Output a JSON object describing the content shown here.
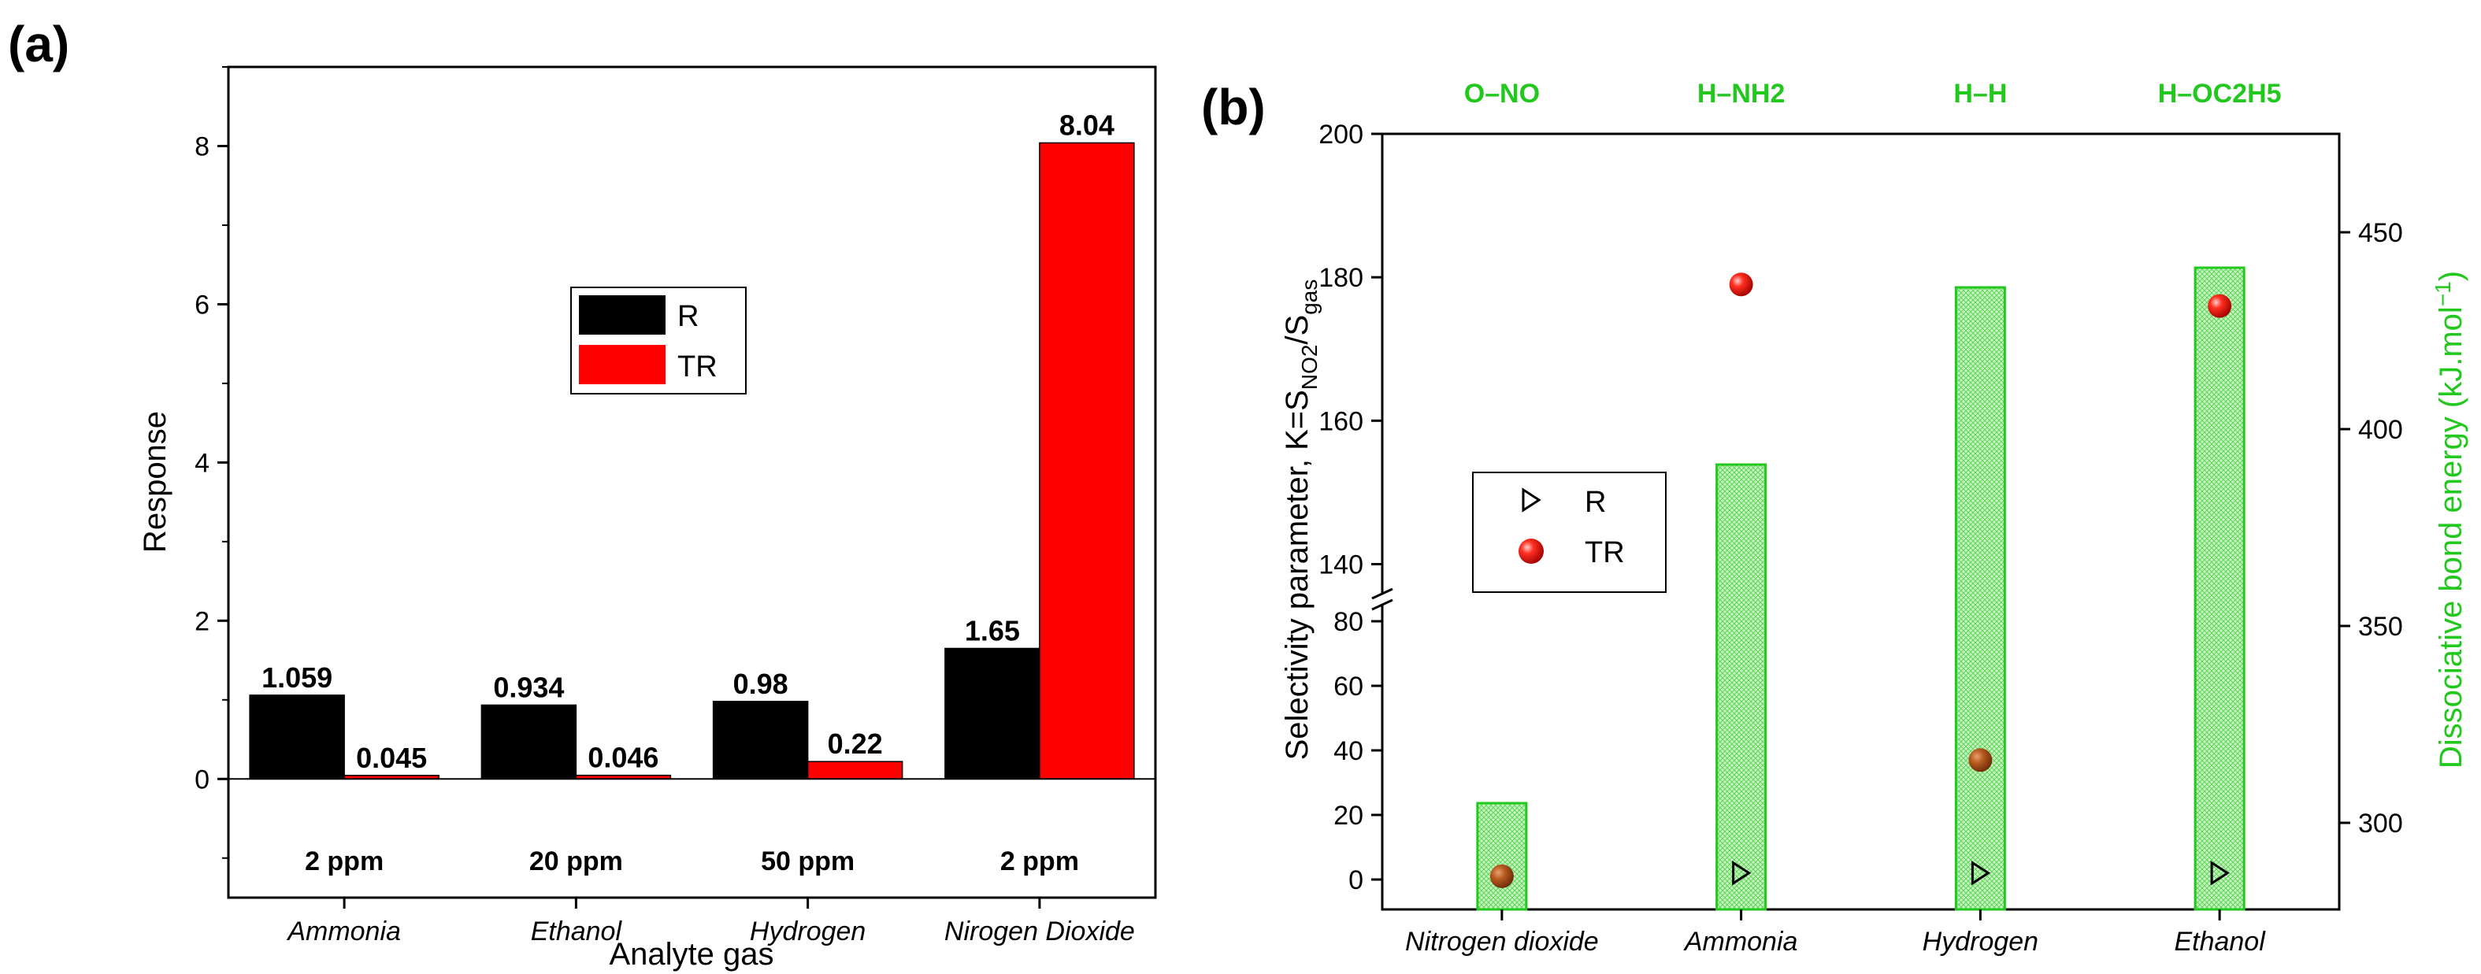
{
  "chart_data": [
    {
      "panel": "(a)",
      "type": "bar",
      "xlabel": "Analyte gas",
      "ylabel": "Response",
      "ylim": [
        -1.5,
        9
      ],
      "yticks": [
        "0",
        "2",
        "4",
        "6",
        "8"
      ],
      "categories": [
        "Ammonia",
        "Ethanol",
        "Hydrogen",
        "Nirogen Dioxide"
      ],
      "concentrations": [
        "2 ppm",
        "20 ppm",
        "50 ppm",
        "2 ppm"
      ],
      "series": [
        {
          "name": "R",
          "color": "#000000",
          "values": [
            1.059,
            0.934,
            0.98,
            1.65
          ],
          "labels": [
            "1.059",
            "0.934",
            "0.98",
            "1.65"
          ]
        },
        {
          "name": "TR",
          "color": "#ff0000",
          "values": [
            0.045,
            0.046,
            0.22,
            8.04
          ],
          "labels": [
            "0.045",
            "0.046",
            "0.22",
            "8.04"
          ]
        }
      ],
      "legend": [
        "R",
        "TR"
      ],
      "legend_position": "center"
    },
    {
      "panel": "(b)",
      "type": "scatter+bar",
      "ylabel_left": "Selectivity parameter, K=S",
      "ylabel_left_sub1": "NO2",
      "ylabel_left_mid": "/S",
      "ylabel_left_sub2": "gas",
      "ylabel_right": "Dissociative bond energy (kJ.mol",
      "ylabel_right_sup": "−1",
      "ylabel_right_close": ")",
      "ylabel_right_color": "#22c81e",
      "left_axis_break": "between 90 and 140",
      "left_ticks_lower": [
        "0",
        "20",
        "40",
        "60",
        "80"
      ],
      "left_ticks_upper": [
        "140",
        "160",
        "180",
        "200"
      ],
      "right_ylim": [
        278,
        475
      ],
      "right_ticks": [
        "300",
        "350",
        "400",
        "450"
      ],
      "categories": [
        "Nitrogen dioxide",
        "Ammonia",
        "Hydrogen",
        "Ethanol"
      ],
      "bond_labels": [
        "O–NO",
        "H–NH2",
        "H–H",
        "H–OC2H5"
      ],
      "bond_energy": [
        305,
        391,
        436,
        441
      ],
      "series": [
        {
          "name": "R",
          "marker": "open-triangle-right",
          "color": "#000000",
          "values": [
            1,
            2,
            2,
            2
          ]
        },
        {
          "name": "TR",
          "marker": "red-sphere",
          "color": "#ff0000",
          "values": [
            1,
            179,
            37,
            176
          ]
        }
      ],
      "legend": [
        "R",
        "TR"
      ],
      "legend_position": "center-left"
    }
  ]
}
